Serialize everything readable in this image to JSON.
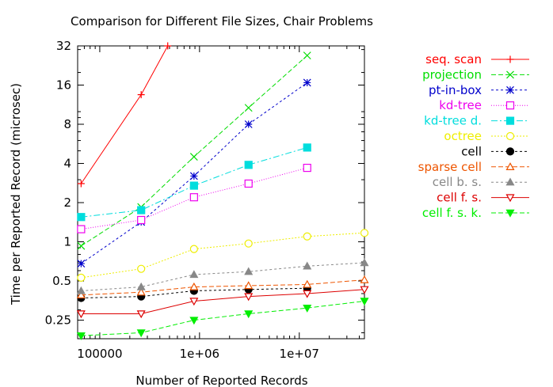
{
  "chart_data": {
    "type": "line",
    "title": "Comparison for Different File Sizes, Chair Problems",
    "xlabel": "Number of Reported Records",
    "ylabel": "Time per Reported Record (microsec)",
    "xscale": "log",
    "yscale": "log",
    "xlim": [
      60000,
      45000000
    ],
    "ylim": [
      0.18,
      32
    ],
    "x_ticks": [
      {
        "value": 100000,
        "label": "100000"
      },
      {
        "value": 1000000,
        "label": "1e+06"
      },
      {
        "value": 10000000,
        "label": "1e+07"
      }
    ],
    "y_ticks": [
      {
        "value": 0.25,
        "label": "0.25"
      },
      {
        "value": 0.5,
        "label": "0.5"
      },
      {
        "value": 1,
        "label": "1"
      },
      {
        "value": 2,
        "label": "2"
      },
      {
        "value": 4,
        "label": "4"
      },
      {
        "value": 8,
        "label": "8"
      },
      {
        "value": 16,
        "label": "16"
      },
      {
        "value": 32,
        "label": "32"
      }
    ],
    "grid": false,
    "legend_position": "right",
    "series": [
      {
        "name": "seq. scan",
        "color": "#ff0000",
        "marker": "plus",
        "dash": "",
        "x": [
          65000,
          260000,
          480000
        ],
        "y": [
          2.8,
          13.5,
          32
        ]
      },
      {
        "name": "projection",
        "color": "#00dd00",
        "marker": "cross",
        "dash": "6,3",
        "x": [
          65000,
          260000,
          880000,
          3100000,
          12000000
        ],
        "y": [
          0.93,
          1.85,
          4.5,
          10.7,
          27
        ]
      },
      {
        "name": "pt-in-box",
        "color": "#0000cc",
        "marker": "star",
        "dash": "3,3",
        "x": [
          65000,
          260000,
          880000,
          3100000,
          12000000
        ],
        "y": [
          0.68,
          1.42,
          3.2,
          8.0,
          16.7
        ]
      },
      {
        "name": "kd-tree",
        "color": "#ee00ee",
        "marker": "square-open",
        "dash": "1,2",
        "x": [
          65000,
          260000,
          880000,
          3100000,
          12000000
        ],
        "y": [
          1.25,
          1.47,
          2.2,
          2.8,
          3.7
        ]
      },
      {
        "name": "kd-tree d.",
        "color": "#00dddd",
        "marker": "square-filled",
        "dash": "8,3,2,3",
        "x": [
          65000,
          260000,
          880000,
          3100000,
          12000000
        ],
        "y": [
          1.55,
          1.75,
          2.7,
          3.9,
          5.3
        ]
      },
      {
        "name": "octree",
        "color": "#eeee00",
        "marker": "circle-open",
        "dash": "2,2",
        "x": [
          65000,
          260000,
          880000,
          3100000,
          12000000,
          45000000
        ],
        "y": [
          0.53,
          0.62,
          0.88,
          0.97,
          1.1,
          1.17
        ]
      },
      {
        "name": "cell",
        "color": "#000000",
        "marker": "circle-filled",
        "dash": "3,3",
        "x": [
          65000,
          260000,
          880000,
          3100000,
          12000000
        ],
        "y": [
          0.37,
          0.38,
          0.42,
          0.43,
          0.44
        ]
      },
      {
        "name": "sparse cell",
        "color": "#ee5500",
        "marker": "triangle-open",
        "dash": "6,3",
        "x": [
          65000,
          260000,
          880000,
          3100000,
          12000000,
          45000000
        ],
        "y": [
          0.39,
          0.41,
          0.45,
          0.46,
          0.47,
          0.51
        ]
      },
      {
        "name": "cell b. s.",
        "color": "#888888",
        "marker": "triangle-filled",
        "dash": "3,3",
        "x": [
          65000,
          260000,
          880000,
          3100000,
          12000000,
          45000000
        ],
        "y": [
          0.42,
          0.45,
          0.56,
          0.59,
          0.65,
          0.69
        ]
      },
      {
        "name": "cell f. s.",
        "color": "#dd0000",
        "marker": "triangle-down-open",
        "dash": "",
        "x": [
          65000,
          260000,
          880000,
          3100000,
          12000000,
          45000000
        ],
        "y": [
          0.28,
          0.28,
          0.35,
          0.38,
          0.4,
          0.43
        ]
      },
      {
        "name": "cell f. s. k.",
        "color": "#00ee00",
        "marker": "triangle-down-filled",
        "dash": "6,3",
        "x": [
          65000,
          260000,
          880000,
          3100000,
          12000000,
          45000000
        ],
        "y": [
          0.19,
          0.2,
          0.25,
          0.28,
          0.31,
          0.35
        ]
      }
    ]
  }
}
